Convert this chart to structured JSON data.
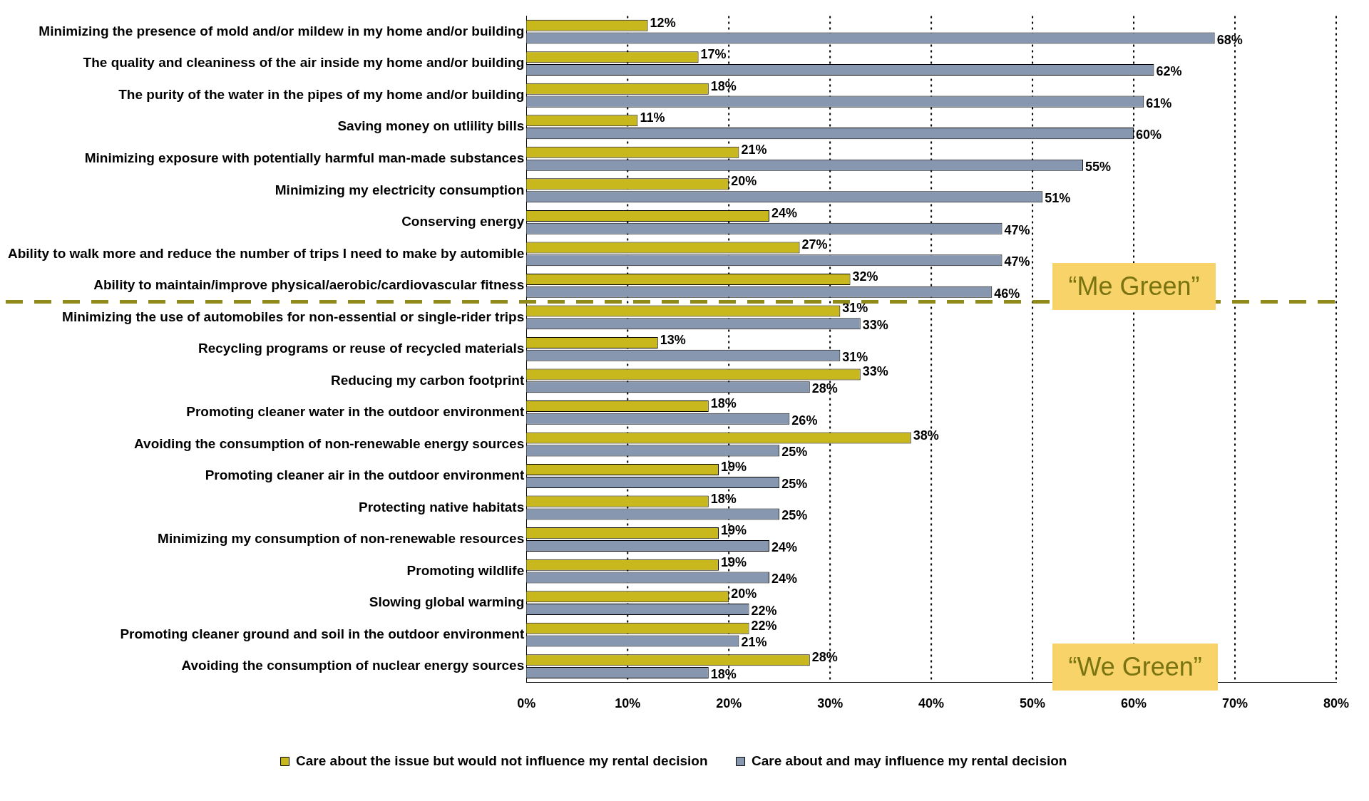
{
  "chart_data": {
    "type": "bar",
    "orientation": "horizontal",
    "categories": [
      "Minimizing the presence of mold and/or mildew in my home and/or building",
      "The quality and cleaniness of the air inside my home and/or building",
      "The purity of the water in the pipes of my home and/or building",
      "Saving money on utlility bills",
      "Minimizing exposure with potentially harmful man-made substances",
      "Minimizing my electricity consumption",
      "Conserving energy",
      "Ability to walk more and reduce the number of trips I need to make by automible",
      "Ability to maintain/improve physical/aerobic/cardiovascular fitness",
      "Minimizing the use of automobiles for non-essential or single-rider trips",
      "Recycling programs or reuse of recycled materials",
      "Reducing my carbon footprint",
      "Promoting cleaner water in the outdoor environment",
      "Avoiding the consumption of non-renewable energy sources",
      "Promoting cleaner air in the outdoor environment",
      "Protecting native habitats",
      "Minimizing my consumption of non-renewable resources",
      "Promoting wildlife",
      "Slowing global warming",
      "Promoting cleaner ground and soil in the outdoor environment",
      "Avoiding the consumption of nuclear energy sources"
    ],
    "series": [
      {
        "name": "Care about the issue but would not influence my rental decision",
        "color": "#c8b81e",
        "values": [
          12,
          17,
          18,
          11,
          21,
          20,
          24,
          27,
          32,
          31,
          13,
          33,
          18,
          38,
          19,
          18,
          19,
          19,
          20,
          22,
          28
        ],
        "value_labels": [
          "12%",
          "17%",
          "18%",
          "11%",
          "21%",
          "20%",
          "24%",
          "27%",
          "32%",
          "31%",
          "13%",
          "33%",
          "18%",
          "38%",
          "19%",
          "18%",
          "19%",
          "19%",
          "20%",
          "22%",
          "28%"
        ]
      },
      {
        "name": "Care about and may influence my rental decision",
        "color": "#8797b0",
        "values": [
          68,
          62,
          61,
          60,
          55,
          51,
          47,
          47,
          46,
          33,
          31,
          28,
          26,
          25,
          25,
          25,
          24,
          24,
          22,
          21,
          18
        ],
        "value_labels": [
          "68%",
          "62%",
          "61%",
          "60%",
          "55%",
          "51%",
          "47%",
          "47%",
          "46%",
          "33%",
          "31%",
          "28%",
          "26%",
          "25%",
          "25%",
          "25%",
          "24%",
          "24%",
          "22%",
          "21%",
          "18%"
        ]
      }
    ],
    "xlim": [
      0,
      80
    ],
    "xticks": [
      {
        "value": 0,
        "label": "0%"
      },
      {
        "value": 10,
        "label": "10%"
      },
      {
        "value": 20,
        "label": "20%"
      },
      {
        "value": 30,
        "label": "30%"
      },
      {
        "value": 40,
        "label": "40%"
      },
      {
        "value": 50,
        "label": "50%"
      },
      {
        "value": 60,
        "label": "60%"
      },
      {
        "value": 70,
        "label": "70%"
      },
      {
        "value": 80,
        "label": "80%"
      }
    ],
    "grid": "x",
    "legend": "bottom",
    "annotations": [
      "“Me Green”",
      "“We Green”"
    ]
  }
}
